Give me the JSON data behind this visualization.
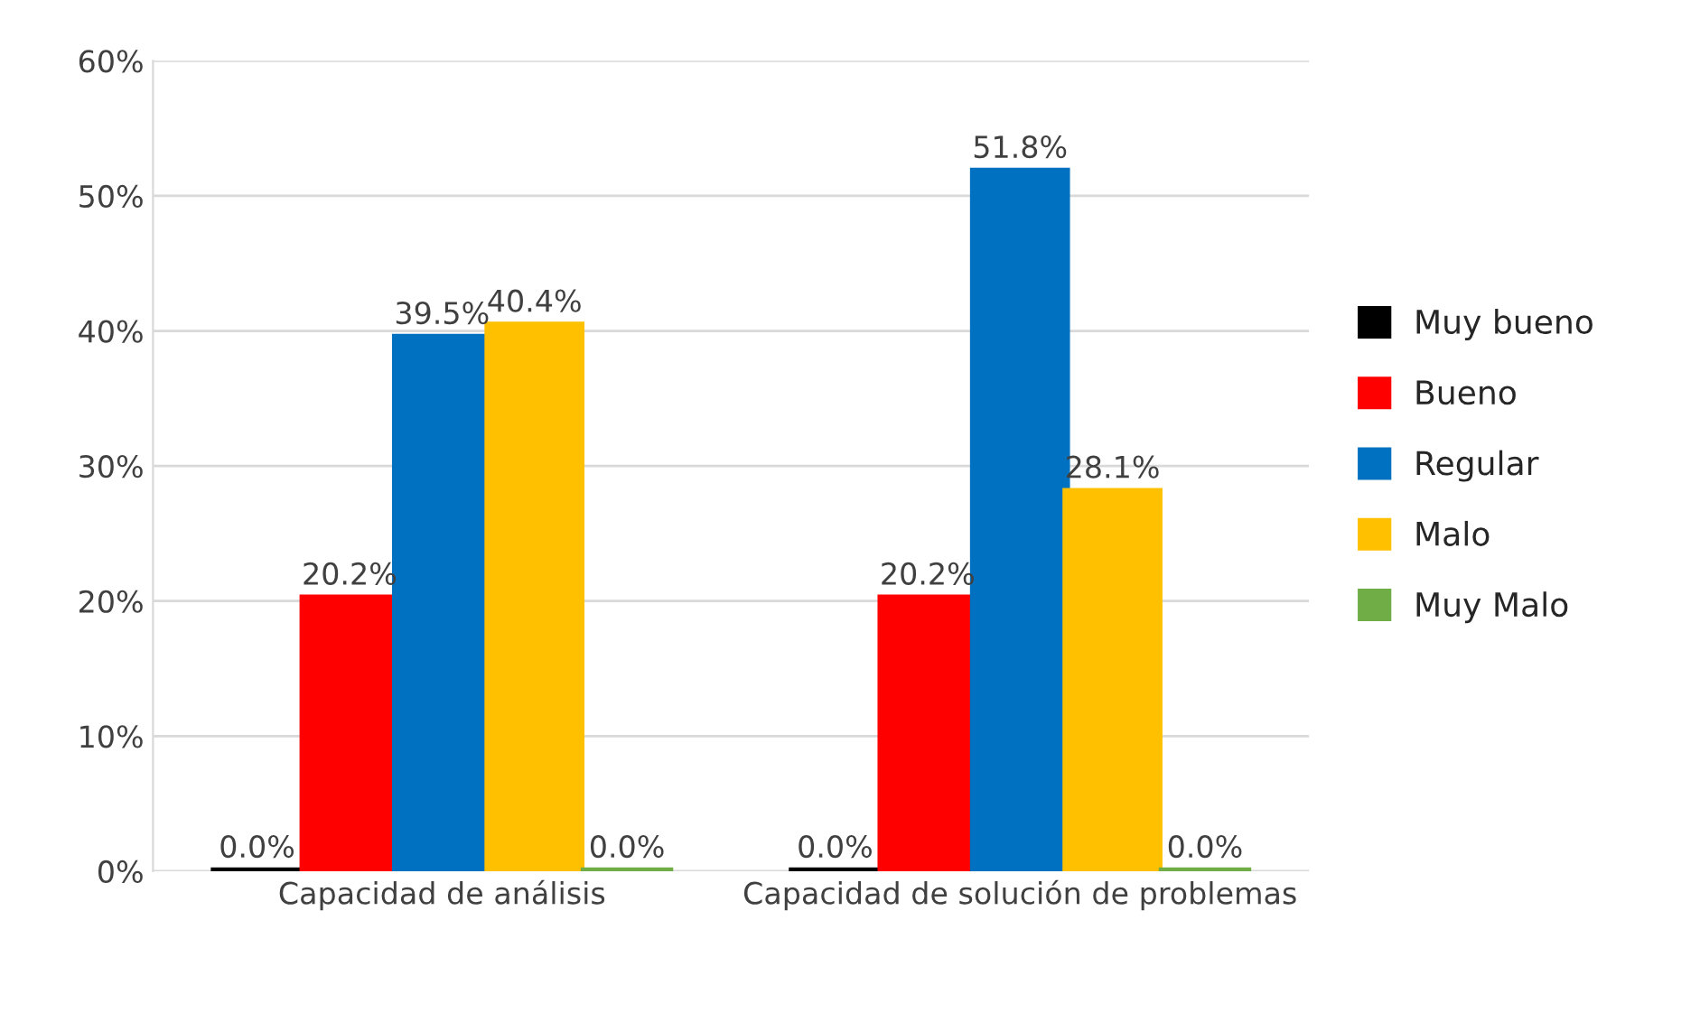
{
  "chart_data": {
    "type": "bar",
    "categories": [
      "Capacidad de análisis",
      "Capacidad de solución de problemas"
    ],
    "series": [
      {
        "name": "Muy bueno",
        "color": "#000000",
        "values": [
          0.0,
          0.0
        ],
        "value_labels": [
          "0.0%",
          "0.0%"
        ]
      },
      {
        "name": "Bueno",
        "color": "#ff0000",
        "values": [
          20.2,
          20.2
        ],
        "value_labels": [
          "20.2%",
          "20.2%"
        ]
      },
      {
        "name": "Regular",
        "color": "#0070c0",
        "values": [
          39.5,
          51.8
        ],
        "value_labels": [
          "39.5%",
          "51.8%"
        ]
      },
      {
        "name": "Malo",
        "color": "#ffc000",
        "values": [
          40.4,
          28.1
        ],
        "value_labels": [
          "40.4%",
          "28.1%"
        ]
      },
      {
        "name": "Muy Malo",
        "color": "#70ad47",
        "values": [
          0.0,
          0.0
        ],
        "value_labels": [
          "0.0%",
          "0.0%"
        ]
      }
    ],
    "ylim": [
      0,
      60
    ],
    "yticks": [
      {
        "value": 0,
        "label": "0%"
      },
      {
        "value": 10,
        "label": "10%"
      },
      {
        "value": 20,
        "label": "20%"
      },
      {
        "value": 30,
        "label": "30%"
      },
      {
        "value": 40,
        "label": "40%"
      },
      {
        "value": 50,
        "label": "50%"
      },
      {
        "value": 60,
        "label": "60%"
      }
    ],
    "grid": "y",
    "legend": "right"
  }
}
